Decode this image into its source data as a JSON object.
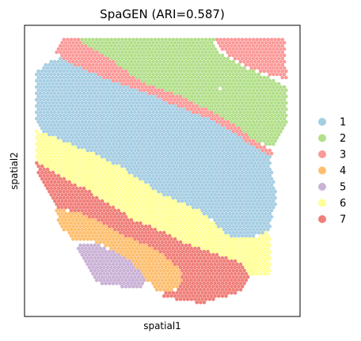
{
  "chart_data": {
    "type": "scatter",
    "title": "SpaGEN (ARI=0.587)",
    "xlabel": "spatial1",
    "ylabel": "spatial2",
    "ticks_shown": false,
    "grid": false,
    "legend_position": "right",
    "series": [
      {
        "name": "1",
        "color": "#a6cee3",
        "region": [
          [
            45,
            90
          ],
          [
            60,
            80
          ],
          [
            80,
            70
          ],
          [
            100,
            80
          ],
          [
            135,
            95
          ],
          [
            180,
            110
          ],
          [
            225,
            130
          ],
          [
            265,
            145
          ],
          [
            300,
            165
          ],
          [
            320,
            180
          ],
          [
            340,
            190
          ],
          [
            345,
            225
          ],
          [
            350,
            250
          ],
          [
            340,
            290
          ],
          [
            320,
            300
          ],
          [
            290,
            300
          ],
          [
            270,
            280
          ],
          [
            250,
            265
          ],
          [
            225,
            255
          ],
          [
            195,
            240
          ],
          [
            175,
            225
          ],
          [
            150,
            210
          ],
          [
            120,
            195
          ],
          [
            85,
            180
          ],
          [
            55,
            170
          ],
          [
            45,
            150
          ]
        ]
      },
      {
        "name": "2",
        "color": "#b2df8a",
        "region": [
          [
            100,
            50
          ],
          [
            270,
            50
          ],
          [
            275,
            65
          ],
          [
            290,
            75
          ],
          [
            320,
            90
          ],
          [
            345,
            100
          ],
          [
            362,
            110
          ],
          [
            362,
            160
          ],
          [
            345,
            185
          ],
          [
            320,
            178
          ],
          [
            300,
            160
          ],
          [
            265,
            140
          ],
          [
            225,
            120
          ],
          [
            180,
            105
          ],
          [
            160,
            90
          ],
          [
            140,
            75
          ],
          [
            115,
            60
          ]
        ]
      },
      {
        "name": "3",
        "color": "#fb9a99",
        "regions": [
          [
            [
              80,
              50
            ],
            [
              100,
              50
            ],
            [
              115,
              60
            ],
            [
              140,
              75
            ],
            [
              160,
              90
            ],
            [
              180,
              105
            ],
            [
              225,
              120
            ],
            [
              265,
              140
            ],
            [
              300,
              160
            ],
            [
              320,
              178
            ],
            [
              345,
              190
            ],
            [
              348,
              198
            ],
            [
              338,
              195
            ],
            [
              320,
              185
            ],
            [
              300,
              170
            ],
            [
              265,
              150
            ],
            [
              225,
              135
            ],
            [
              180,
              115
            ],
            [
              135,
              100
            ],
            [
              100,
              85
            ],
            [
              80,
              75
            ],
            [
              70,
              65
            ]
          ],
          [
            [
              270,
              50
            ],
            [
              360,
              50
            ],
            [
              362,
              100
            ],
            [
              340,
              95
            ],
            [
              320,
              88
            ],
            [
              295,
              75
            ],
            [
              278,
              62
            ]
          ]
        ]
      },
      {
        "name": "4",
        "color": "#fdbf6f",
        "region": [
          [
            70,
            265
          ],
          [
            100,
            268
          ],
          [
            120,
            278
          ],
          [
            150,
            295
          ],
          [
            175,
            305
          ],
          [
            200,
            318
          ],
          [
            225,
            335
          ],
          [
            232,
            358
          ],
          [
            218,
            368
          ],
          [
            200,
            368
          ],
          [
            180,
            350
          ],
          [
            165,
            330
          ],
          [
            140,
            315
          ],
          [
            118,
            305
          ],
          [
            95,
            305
          ],
          [
            85,
            295
          ],
          [
            75,
            285
          ]
        ]
      },
      {
        "name": "5",
        "color": "#cab2d6",
        "region": [
          [
            97,
            308
          ],
          [
            120,
            308
          ],
          [
            145,
            318
          ],
          [
            165,
            330
          ],
          [
            178,
            345
          ],
          [
            185,
            360
          ],
          [
            175,
            365
          ],
          [
            150,
            362
          ],
          [
            125,
            358
          ],
          [
            118,
            350
          ],
          [
            110,
            335
          ],
          [
            100,
            320
          ]
        ]
      },
      {
        "name": "6",
        "color": "#ffff99",
        "region": [
          [
            45,
            165
          ],
          [
            55,
            168
          ],
          [
            85,
            180
          ],
          [
            120,
            195
          ],
          [
            150,
            210
          ],
          [
            175,
            225
          ],
          [
            195,
            240
          ],
          [
            225,
            255
          ],
          [
            250,
            265
          ],
          [
            270,
            282
          ],
          [
            290,
            300
          ],
          [
            320,
            300
          ],
          [
            340,
            292
          ],
          [
            343,
            335
          ],
          [
            340,
            350
          ],
          [
            318,
            350
          ],
          [
            300,
            330
          ],
          [
            270,
            320
          ],
          [
            240,
            310
          ],
          [
            210,
            295
          ],
          [
            170,
            278
          ],
          [
            140,
            260
          ],
          [
            110,
            240
          ],
          [
            80,
            225
          ],
          [
            55,
            210
          ],
          [
            45,
            205
          ]
        ]
      },
      {
        "name": "7",
        "color": "#f07f7a",
        "region": [
          [
            45,
            205
          ],
          [
            55,
            210
          ],
          [
            80,
            225
          ],
          [
            110,
            240
          ],
          [
            140,
            260
          ],
          [
            170,
            278
          ],
          [
            210,
            295
          ],
          [
            240,
            310
          ],
          [
            270,
            320
          ],
          [
            300,
            330
          ],
          [
            315,
            345
          ],
          [
            310,
            365
          ],
          [
            285,
            375
          ],
          [
            255,
            383
          ],
          [
            225,
            380
          ],
          [
            200,
            372
          ],
          [
            220,
            368
          ],
          [
            232,
            355
          ],
          [
            225,
            338
          ],
          [
            200,
            318
          ],
          [
            175,
            305
          ],
          [
            150,
            295
          ],
          [
            120,
            278
          ],
          [
            100,
            268
          ],
          [
            72,
            263
          ],
          [
            60,
            240
          ],
          [
            48,
            225
          ]
        ]
      }
    ],
    "highlight_points": [
      {
        "series": "1",
        "note": "isolated point",
        "x": 278,
        "y": 112
      }
    ]
  }
}
